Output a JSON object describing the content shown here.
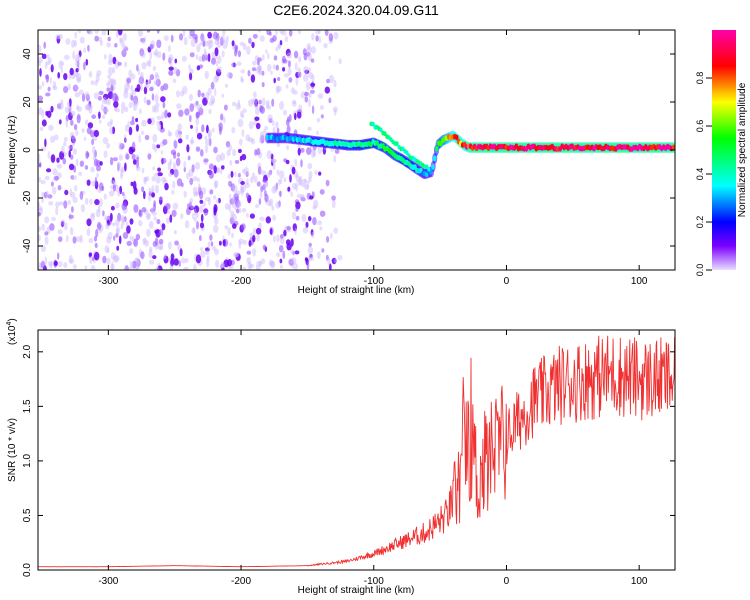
{
  "title": "C2E6.2024.320.04.09.G11",
  "chart_data": [
    {
      "type": "heatmap",
      "xlabel": "Height of straight line (km)",
      "ylabel": "Frequency (Hz)",
      "xlim": [
        -353,
        127
      ],
      "ylim": [
        -50,
        50
      ],
      "x_ticks": [
        -300,
        -200,
        -100,
        0,
        100
      ],
      "y_ticks": [
        -40,
        -20,
        0,
        20,
        40
      ],
      "colorbar": {
        "label": "Normalized spectral amplitude",
        "range": [
          0,
          1
        ],
        "ticks": [
          "0.0",
          "0.2",
          "0.4",
          "0.6",
          "0.8"
        ],
        "colors": [
          "#e8dcff",
          "#7b00ff",
          "#0000ff",
          "#00ffff",
          "#00ff00",
          "#ffff00",
          "#ff0000",
          "#ff00aa"
        ]
      },
      "noise_region": {
        "x_range": [
          -353,
          -145
        ],
        "freq_range": [
          -50,
          50
        ],
        "amplitude": 0.15
      },
      "ridge": {
        "x": [
          -180,
          -165,
          -150,
          -135,
          -120,
          -110,
          -100,
          -92,
          -85,
          -78,
          -70,
          -62,
          -56,
          -52,
          -48,
          -44,
          -40,
          -36,
          -32,
          -28,
          -20,
          0,
          30,
          60,
          90,
          127
        ],
        "freq": [
          5,
          5,
          4,
          3,
          2,
          2,
          3,
          1,
          -2,
          -4,
          -7,
          -10,
          -9,
          2,
          4,
          5,
          6,
          4,
          2,
          1,
          1,
          1,
          1,
          1,
          1,
          1
        ],
        "amplitude": [
          0.3,
          0.3,
          0.35,
          0.4,
          0.4,
          0.45,
          0.45,
          0.5,
          0.5,
          0.45,
          0.4,
          0.3,
          0.3,
          0.5,
          0.6,
          0.7,
          0.8,
          0.8,
          0.85,
          0.9,
          0.95,
          0.95,
          0.95,
          0.95,
          0.95,
          0.95
        ]
      }
    },
    {
      "type": "line",
      "xlabel": "Height of straight line (km)",
      "ylabel": "SNR (10 * v/v)",
      "y_multiplier": "(x10^4)",
      "xlim": [
        -353,
        127
      ],
      "ylim": [
        0,
        2.2
      ],
      "x_ticks": [
        -300,
        -200,
        -100,
        0,
        100
      ],
      "y_ticks": [
        "0.0",
        "0.5",
        "1.0",
        "1.5",
        "2.0"
      ],
      "color": "#f03030",
      "series": [
        {
          "x": [
            -353,
            -300,
            -250,
            -200,
            -150,
            -120,
            -100,
            -80,
            -60,
            -45,
            -35,
            -28,
            -22,
            -15,
            -5,
            5,
            20,
            40,
            60,
            80,
            100,
            127
          ],
          "y": [
            0.03,
            0.03,
            0.04,
            0.03,
            0.04,
            0.08,
            0.15,
            0.25,
            0.35,
            0.5,
            0.8,
            1.4,
            0.8,
            1.0,
            1.1,
            1.3,
            1.55,
            1.7,
            1.75,
            1.8,
            1.75,
            1.75
          ]
        }
      ]
    }
  ]
}
